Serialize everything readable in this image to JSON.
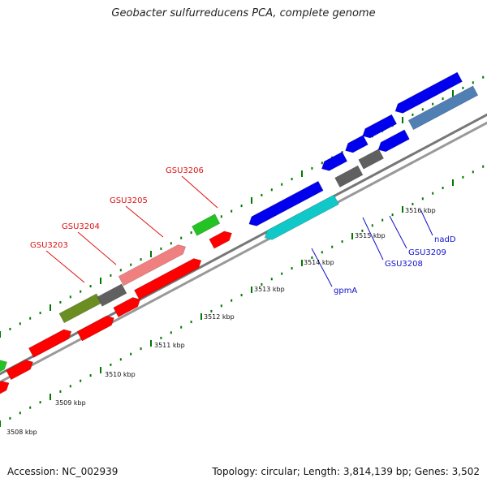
{
  "title": "Geobacter sulfurreducens PCA, complete genome",
  "footer": {
    "accession": "Accession: NC_002939",
    "summary": "Topology: circular; Length: 3,814,139 bp; Genes: 3,502"
  },
  "colors": {
    "backbone": "#888888",
    "forward_red": "#ff0000",
    "forward_pink": "#f08080",
    "reverse_blue": "#0000ee",
    "cyan": "#11c8c8",
    "steel": "#4f7fb3",
    "dark_grey": "#606060",
    "olive": "#6b8e23",
    "green": "#22c322",
    "tick": "#007700"
  },
  "gene_labels": [
    {
      "text": "GSU3203",
      "color": "red"
    },
    {
      "text": "GSU3204",
      "color": "red"
    },
    {
      "text": "GSU3205",
      "color": "red"
    },
    {
      "text": "GSU3206",
      "color": "red"
    },
    {
      "text": "gpmA",
      "color": "blue"
    },
    {
      "text": "GSU3208",
      "color": "blue"
    },
    {
      "text": "GSU3209",
      "color": "blue"
    },
    {
      "text": "nadD",
      "color": "blue"
    }
  ],
  "kbp_ticks": [
    "3508 kbp",
    "3509 kbp",
    "3510 kbp",
    "3511 kbp",
    "3512 kbp",
    "3513 kbp",
    "3514 kbp",
    "3515 kbp",
    "3516 kbp"
  ]
}
